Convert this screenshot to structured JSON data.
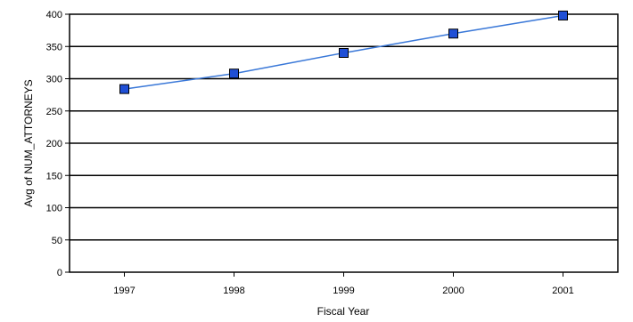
{
  "chart_data": {
    "type": "line",
    "title": "",
    "xlabel": "Fiscal Year",
    "ylabel": "Avg of NUM_ATTORNEYS",
    "categories": [
      "1997",
      "1998",
      "1999",
      "2000",
      "2001"
    ],
    "series": [
      {
        "values": [
          284,
          308,
          340,
          370,
          398
        ]
      }
    ],
    "ylim": [
      0,
      400
    ],
    "yticks": [
      0,
      50,
      100,
      150,
      200,
      250,
      300,
      350,
      400
    ],
    "grid": "horizontal",
    "legend": "none",
    "colors": {
      "line": "#3a78d8",
      "marker": "#1f4fd6",
      "marker_edge": "#000000",
      "grid": "#000000"
    }
  }
}
